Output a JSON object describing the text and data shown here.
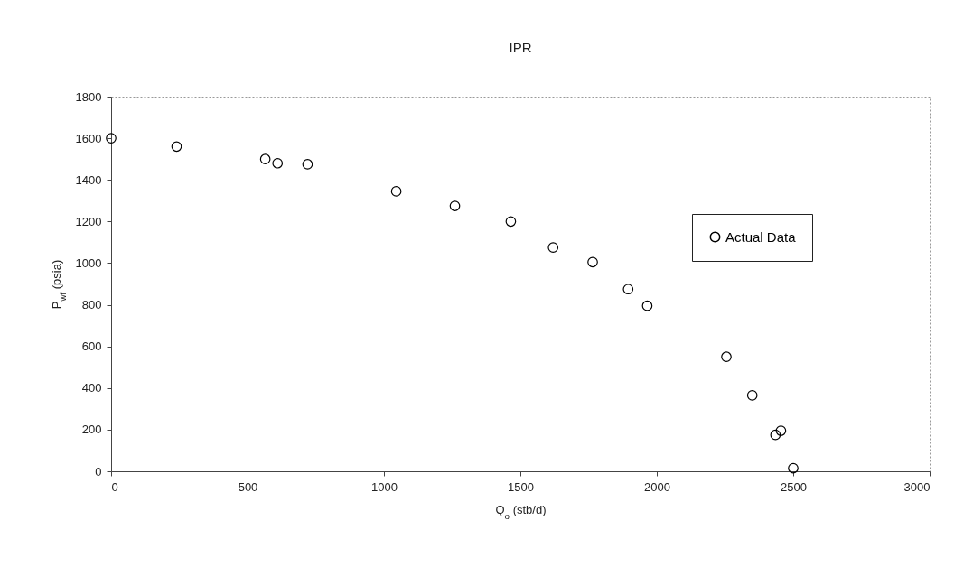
{
  "chart_data": {
    "type": "scatter",
    "title": "IPR",
    "xlabel": "Q$_{o}$ (stb/d)",
    "ylabel": "P$_{wf}$ (psia)",
    "x": [
      0,
      240,
      565,
      610,
      720,
      1045,
      1260,
      1465,
      1620,
      1765,
      1895,
      1965,
      2255,
      2350,
      2435,
      2455,
      2500
    ],
    "series": [
      {
        "name": "Actual Data",
        "color": "#000000",
        "values": [
          1600,
          1560,
          1500,
          1480,
          1475,
          1345,
          1275,
          1200,
          1075,
          1005,
          875,
          795,
          550,
          365,
          175,
          195,
          15
        ]
      }
    ],
    "xlim": [
      0,
      3000
    ],
    "xticks": [
      0,
      500,
      1000,
      1500,
      2000,
      2500,
      3000
    ],
    "ylim": [
      0,
      1800
    ],
    "yticks": [
      0,
      200,
      400,
      600,
      800,
      1000,
      1200,
      1400,
      1600,
      1800
    ],
    "grid": false,
    "legend": "top right",
    "marker": "circle"
  }
}
